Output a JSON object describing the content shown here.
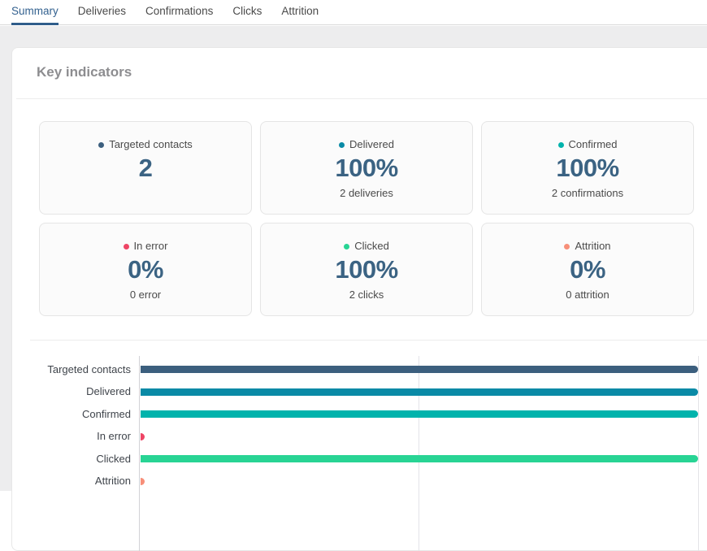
{
  "tabs": [
    {
      "label": "Summary",
      "active": true
    },
    {
      "label": "Deliveries",
      "active": false
    },
    {
      "label": "Confirmations",
      "active": false
    },
    {
      "label": "Clicks",
      "active": false
    },
    {
      "label": "Attrition",
      "active": false
    }
  ],
  "panel": {
    "title": "Key indicators"
  },
  "cards": [
    {
      "label": "Targeted contacts",
      "value": "2",
      "subtitle": "",
      "dot_color": "#3c5f7e"
    },
    {
      "label": "Delivered",
      "value": "100%",
      "subtitle": "2 deliveries",
      "dot_color": "#0a8aa6"
    },
    {
      "label": "Confirmed",
      "value": "100%",
      "subtitle": "2 confirmations",
      "dot_color": "#00b3ac"
    },
    {
      "label": "In error",
      "value": "0%",
      "subtitle": "0 error",
      "dot_color": "#ee4565"
    },
    {
      "label": "Clicked",
      "value": "100%",
      "subtitle": "2 clicks",
      "dot_color": "#28d494"
    },
    {
      "label": "Attrition",
      "value": "0%",
      "subtitle": "0 attrition",
      "dot_color": "#f78f79"
    }
  ],
  "chart_data": {
    "type": "bar",
    "orientation": "horizontal",
    "title": "",
    "categories": [
      "Targeted contacts",
      "Delivered",
      "Confirmed",
      "In error",
      "Clicked",
      "Attrition"
    ],
    "values": [
      2,
      2,
      2,
      0,
      2,
      0
    ],
    "colors": [
      "#3c5f7e",
      "#0a8aa6",
      "#00b3ac",
      "#ee4565",
      "#28d494",
      "#f78f79"
    ],
    "xlim": [
      0,
      2
    ],
    "grid": true,
    "gridline_values": [
      0,
      1,
      2
    ],
    "legend": "none"
  },
  "colors": {
    "active_tab": "#2f5d8a",
    "value_text": "#3b6383",
    "page_background": "#ededee"
  }
}
